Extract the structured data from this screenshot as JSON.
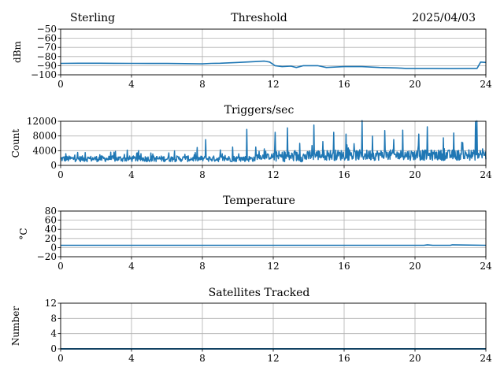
{
  "header": {
    "station": "Sterling",
    "date": "2025/04/03"
  },
  "line_color": "#1f77b4",
  "chart_data": [
    {
      "type": "line",
      "title": "Threshold",
      "ylabel": "dBm",
      "xlim": [
        0,
        24
      ],
      "ylim": [
        -100,
        -50
      ],
      "xticks": [
        0,
        4,
        8,
        12,
        16,
        20,
        24
      ],
      "yticks": [
        -100,
        -90,
        -80,
        -70,
        -60,
        -50
      ],
      "grid": true,
      "series": [
        {
          "x": [
            0,
            1,
            2,
            3,
            4,
            5,
            6,
            7,
            8,
            8.5,
            9,
            10,
            11,
            11.5,
            11.8,
            12.1,
            12.5,
            13,
            13.3,
            13.7,
            14,
            14.5,
            15,
            16,
            17,
            18,
            19,
            19.5,
            20,
            21,
            22,
            23,
            23.5,
            23.7,
            24
          ],
          "y": [
            -87.5,
            -87.3,
            -87.3,
            -87.4,
            -87.5,
            -87.6,
            -87.6,
            -87.8,
            -88,
            -87.5,
            -87.3,
            -86.5,
            -85.5,
            -85,
            -86,
            -90,
            -91,
            -90.5,
            -92,
            -90,
            -90,
            -90,
            -92,
            -91,
            -91,
            -92,
            -92.5,
            -93,
            -93,
            -93,
            -93.2,
            -93,
            -93,
            -86,
            -86.5
          ]
        }
      ]
    },
    {
      "type": "line",
      "title": "Triggers/sec",
      "ylabel": "Count",
      "xlim": [
        0,
        24
      ],
      "ylim": [
        0,
        12000
      ],
      "xticks": [
        0,
        4,
        8,
        12,
        16,
        20,
        24
      ],
      "yticks": [
        0,
        4000,
        8000,
        12000
      ],
      "grid": true,
      "series": [
        {
          "baseline": 1800,
          "noise": 800,
          "spikes": [
            {
              "x": 0.3,
              "y": 3200
            },
            {
              "x": 0.8,
              "y": 2800
            },
            {
              "x": 1.4,
              "y": 3500
            },
            {
              "x": 2.2,
              "y": 2900
            },
            {
              "x": 3.0,
              "y": 3600
            },
            {
              "x": 3.6,
              "y": 3000
            },
            {
              "x": 4.3,
              "y": 3300
            },
            {
              "x": 5.2,
              "y": 3100
            },
            {
              "x": 6.1,
              "y": 3400
            },
            {
              "x": 7.0,
              "y": 3000
            },
            {
              "x": 7.6,
              "y": 3500
            },
            {
              "x": 8.2,
              "y": 7000
            },
            {
              "x": 9.0,
              "y": 4200
            },
            {
              "x": 9.7,
              "y": 5000
            },
            {
              "x": 10.5,
              "y": 9800
            },
            {
              "x": 11.0,
              "y": 5000
            },
            {
              "x": 11.5,
              "y": 4500
            },
            {
              "x": 12.1,
              "y": 9000
            },
            {
              "x": 12.8,
              "y": 10200
            },
            {
              "x": 13.5,
              "y": 6000
            },
            {
              "x": 14.3,
              "y": 11000
            },
            {
              "x": 14.8,
              "y": 6500
            },
            {
              "x": 15.4,
              "y": 9000
            },
            {
              "x": 16.1,
              "y": 8500
            },
            {
              "x": 17.0,
              "y": 12200
            },
            {
              "x": 17.6,
              "y": 8000
            },
            {
              "x": 18.3,
              "y": 9500
            },
            {
              "x": 18.8,
              "y": 7000
            },
            {
              "x": 19.3,
              "y": 9600
            },
            {
              "x": 20.2,
              "y": 8500
            },
            {
              "x": 20.7,
              "y": 10500
            },
            {
              "x": 21.6,
              "y": 7500
            },
            {
              "x": 22.2,
              "y": 8800
            },
            {
              "x": 22.7,
              "y": 6200
            },
            {
              "x": 23.4,
              "y": 12000
            },
            {
              "x": 23.5,
              "y": 12100
            },
            {
              "x": 23.8,
              "y": 4500
            }
          ]
        }
      ]
    },
    {
      "type": "line",
      "title": "Temperature",
      "ylabel": "°C",
      "xlim": [
        0,
        24
      ],
      "ylim": [
        -20,
        80
      ],
      "xticks": [
        0,
        4,
        8,
        12,
        16,
        20,
        24
      ],
      "yticks": [
        -20,
        0,
        20,
        40,
        60,
        80
      ],
      "grid": true,
      "series": [
        {
          "x": [
            0,
            4,
            8,
            12,
            16,
            20,
            20.5,
            20.7,
            21,
            22,
            22.1,
            24
          ],
          "y": [
            5,
            5,
            5,
            5,
            5,
            5,
            5,
            6,
            5,
            5,
            6,
            5
          ]
        }
      ]
    },
    {
      "type": "line",
      "title": "Satellites Tracked",
      "ylabel": "Number",
      "xlim": [
        0,
        24
      ],
      "ylim": [
        0,
        12
      ],
      "xticks": [
        0,
        4,
        8,
        12,
        16,
        20,
        24
      ],
      "yticks": [
        0,
        4,
        8,
        12
      ],
      "grid": true,
      "series": [
        {
          "x": [
            0,
            24
          ],
          "y": [
            0,
            0
          ]
        }
      ]
    }
  ]
}
